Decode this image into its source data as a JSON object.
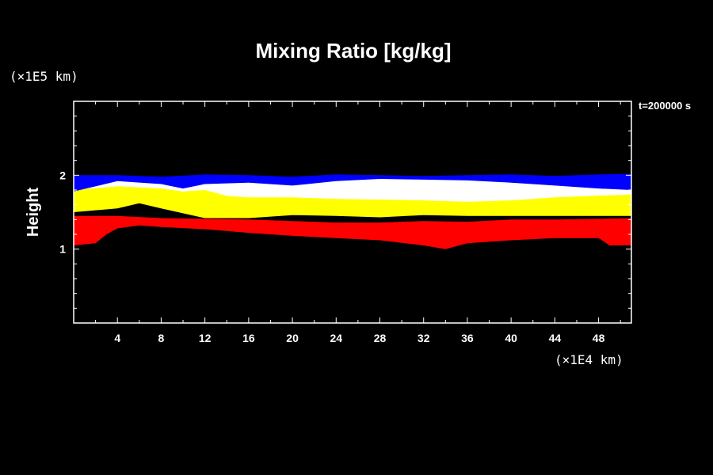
{
  "chart_data": {
    "type": "heatmap",
    "title": "Mixing Ratio [kg/kg]",
    "xlabel": "",
    "ylabel": "Height",
    "x_unit_label": "(×1E4 km)",
    "y_unit_label": "(×1E5 km)",
    "time_label": "t=200000 s",
    "xlim": [
      0,
      51
    ],
    "ylim": [
      0,
      3
    ],
    "x_ticks": [
      4,
      8,
      12,
      16,
      20,
      24,
      28,
      32,
      36,
      40,
      44,
      48
    ],
    "y_ticks": [
      1,
      2
    ],
    "grid": false,
    "background_color": "#000000",
    "frame_color": "#ffffff",
    "layers": [
      {
        "color": "#ff0000",
        "upper": [
          [
            0,
            1.45
          ],
          [
            4,
            1.45
          ],
          [
            8,
            1.42
          ],
          [
            12,
            1.41
          ],
          [
            16,
            1.4
          ],
          [
            20,
            1.38
          ],
          [
            24,
            1.36
          ],
          [
            28,
            1.36
          ],
          [
            32,
            1.38
          ],
          [
            36,
            1.37
          ],
          [
            40,
            1.4
          ],
          [
            44,
            1.4
          ],
          [
            48,
            1.41
          ],
          [
            51,
            1.42
          ]
        ],
        "lower": [
          [
            0,
            1.05
          ],
          [
            2,
            1.08
          ],
          [
            3,
            1.2
          ],
          [
            4,
            1.28
          ],
          [
            6,
            1.32
          ],
          [
            8,
            1.3
          ],
          [
            12,
            1.27
          ],
          [
            16,
            1.22
          ],
          [
            20,
            1.18
          ],
          [
            24,
            1.15
          ],
          [
            28,
            1.12
          ],
          [
            32,
            1.05
          ],
          [
            34,
            1.0
          ],
          [
            36,
            1.08
          ],
          [
            40,
            1.12
          ],
          [
            44,
            1.15
          ],
          [
            48,
            1.15
          ],
          [
            49,
            1.05
          ],
          [
            51,
            1.05
          ]
        ]
      },
      {
        "color": "#ffff00",
        "upper": [
          [
            0,
            1.85
          ],
          [
            4,
            1.88
          ],
          [
            8,
            1.85
          ],
          [
            12,
            1.83
          ],
          [
            16,
            1.8
          ],
          [
            20,
            1.8
          ],
          [
            24,
            1.75
          ],
          [
            28,
            1.72
          ],
          [
            32,
            1.72
          ],
          [
            36,
            1.7
          ],
          [
            40,
            1.72
          ],
          [
            44,
            1.75
          ],
          [
            48,
            1.78
          ],
          [
            51,
            1.78
          ]
        ],
        "lower": [
          [
            0,
            1.5
          ],
          [
            4,
            1.55
          ],
          [
            6,
            1.62
          ],
          [
            8,
            1.55
          ],
          [
            12,
            1.42
          ],
          [
            16,
            1.42
          ],
          [
            20,
            1.46
          ],
          [
            24,
            1.45
          ],
          [
            28,
            1.43
          ],
          [
            32,
            1.46
          ],
          [
            36,
            1.45
          ],
          [
            40,
            1.45
          ],
          [
            44,
            1.45
          ],
          [
            48,
            1.45
          ],
          [
            51,
            1.45
          ]
        ]
      },
      {
        "color": "#ffffff",
        "upper": [
          [
            0,
            1.97
          ],
          [
            4,
            1.97
          ],
          [
            8,
            1.95
          ],
          [
            12,
            1.97
          ],
          [
            14,
            1.97
          ],
          [
            16,
            1.95
          ],
          [
            20,
            1.92
          ],
          [
            24,
            1.97
          ],
          [
            28,
            1.99
          ],
          [
            32,
            1.98
          ],
          [
            36,
            1.97
          ],
          [
            40,
            1.96
          ],
          [
            43,
            1.93
          ],
          [
            51,
            1.9
          ]
        ],
        "lower": [
          [
            0,
            1.8
          ],
          [
            4,
            1.85
          ],
          [
            8,
            1.82
          ],
          [
            10,
            1.78
          ],
          [
            12,
            1.8
          ],
          [
            14,
            1.72
          ],
          [
            16,
            1.7
          ],
          [
            20,
            1.7
          ],
          [
            24,
            1.68
          ],
          [
            28,
            1.67
          ],
          [
            32,
            1.66
          ],
          [
            36,
            1.64
          ],
          [
            40,
            1.66
          ],
          [
            42,
            1.68
          ],
          [
            44,
            1.7
          ],
          [
            51,
            1.74
          ]
        ]
      },
      {
        "color": "#0000ff",
        "upper": [
          [
            0,
            2.0
          ],
          [
            4,
            2.0
          ],
          [
            8,
            1.98
          ],
          [
            12,
            2.01
          ],
          [
            16,
            2.0
          ],
          [
            20,
            1.98
          ],
          [
            24,
            2.01
          ],
          [
            28,
            2.0
          ],
          [
            32,
            1.99
          ],
          [
            36,
            2.0
          ],
          [
            40,
            2.01
          ],
          [
            44,
            1.99
          ],
          [
            48,
            2.01
          ],
          [
            51,
            2.02
          ]
        ],
        "lower": [
          [
            0,
            1.78
          ],
          [
            4,
            1.92
          ],
          [
            8,
            1.88
          ],
          [
            10,
            1.82
          ],
          [
            12,
            1.88
          ],
          [
            16,
            1.9
          ],
          [
            20,
            1.86
          ],
          [
            24,
            1.92
          ],
          [
            28,
            1.95
          ],
          [
            32,
            1.94
          ],
          [
            36,
            1.93
          ],
          [
            40,
            1.9
          ],
          [
            44,
            1.86
          ],
          [
            48,
            1.82
          ],
          [
            51,
            1.8
          ]
        ]
      }
    ]
  }
}
